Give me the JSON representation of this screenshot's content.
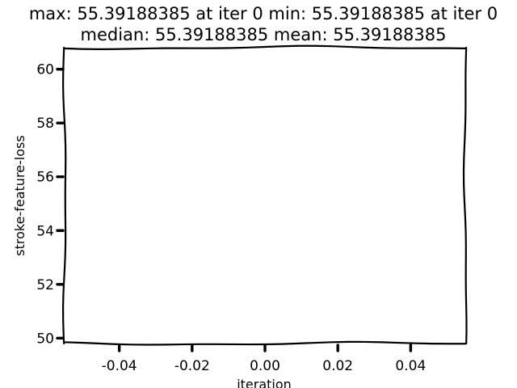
{
  "chart_data": {
    "type": "line",
    "title_lines": [
      "max: 55.39188385 at iter 0 min: 55.39188385 at iter 0",
      "median: 55.39188385 mean: 55.39188385"
    ],
    "xlabel": "iteration",
    "ylabel": "stroke-feature-loss",
    "xlim": [
      -0.055,
      0.055
    ],
    "ylim": [
      49.8,
      60.8
    ],
    "xticks": [
      -0.04,
      -0.02,
      0.0,
      0.02,
      0.04
    ],
    "xtick_labels": [
      "-0.04",
      "-0.02",
      "0.00",
      "0.02",
      "0.04"
    ],
    "yticks": [
      50,
      52,
      54,
      56,
      58,
      60
    ],
    "ytick_labels": [
      "50",
      "52",
      "54",
      "56",
      "58",
      "60"
    ],
    "series": [
      {
        "x": [
          0
        ],
        "y": [
          55.39188385
        ]
      }
    ],
    "grid": false,
    "style": "xkcd",
    "line_color": "#1f77b4"
  }
}
